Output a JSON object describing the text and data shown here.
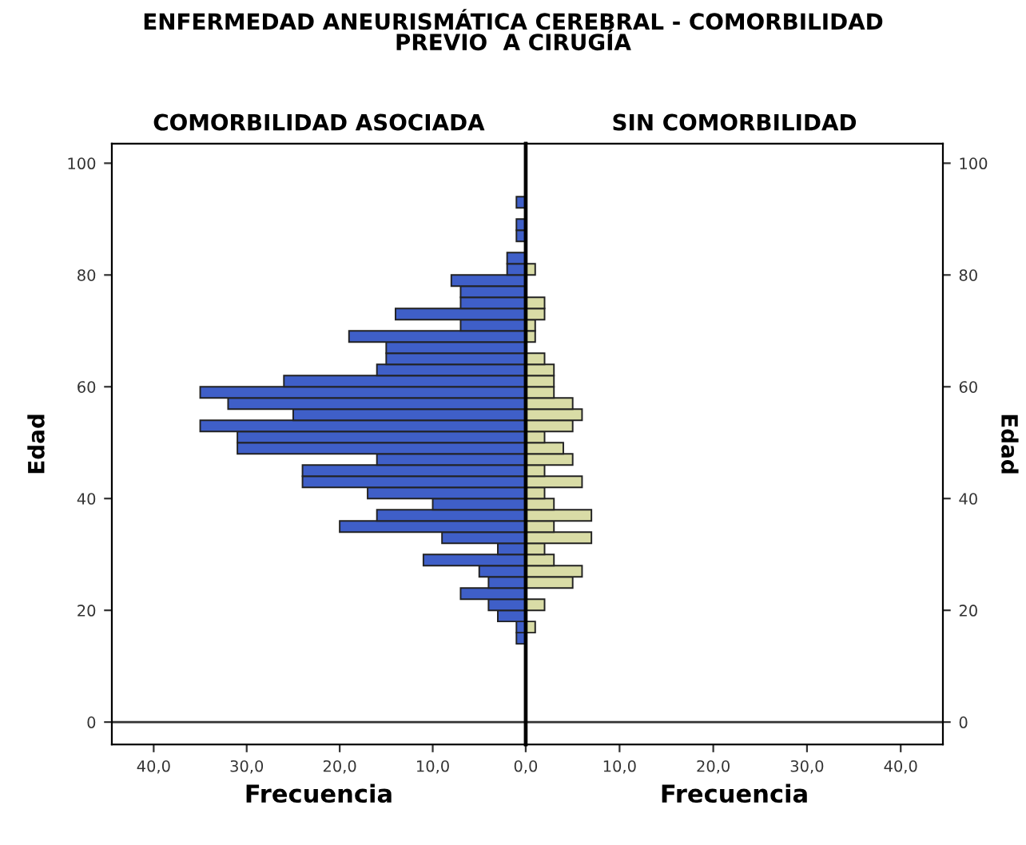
{
  "chart_data": [
    {
      "type": "histogram",
      "title": "ENFERMEDAD ANEURISMÁTICA CEREBRAL - COMORBILIDAD\nPREVIO  A CIRUGÍA",
      "subtitle": "COMORBILIDAD ASOCIADA",
      "xlabel": "Frecuencia",
      "ylabel": "Edad",
      "orientation": "horizontal",
      "bins": [
        14,
        16,
        18,
        20,
        22,
        24,
        26,
        28,
        30,
        32,
        34,
        36,
        38,
        40,
        42,
        44,
        46,
        48,
        50,
        52,
        54,
        56,
        58,
        60,
        62,
        64,
        66,
        68,
        70,
        72,
        74,
        76,
        78,
        80,
        82,
        84,
        86,
        88,
        90,
        92,
        94
      ],
      "values": [
        1,
        1,
        3,
        4,
        7,
        4,
        5,
        11,
        3,
        9,
        20,
        16,
        10,
        17,
        24,
        24,
        16,
        31,
        31,
        35,
        25,
        32,
        35,
        26,
        16,
        15,
        15,
        19,
        7,
        14,
        7,
        7,
        8,
        2,
        2,
        0,
        1,
        1,
        0,
        1
      ],
      "color": "#3f5fc8",
      "xlim": [
        44.5,
        0
      ],
      "ylim": [
        -4,
        103.5
      ],
      "xticks": [
        {
          "value": 40,
          "label": "40,0"
        },
        {
          "value": 30,
          "label": "30,0"
        },
        {
          "value": 20,
          "label": "20,0"
        },
        {
          "value": 10,
          "label": "10,0"
        },
        {
          "value": 0,
          "label": "0,0"
        }
      ],
      "yticks": [
        0,
        20,
        40,
        60,
        80,
        100
      ],
      "ref_lines": [
        {
          "axis": "y",
          "value": 0
        }
      ]
    },
    {
      "type": "histogram",
      "subtitle": "SIN COMORBILIDAD",
      "xlabel": "Frecuencia",
      "ylabel": "Edad",
      "orientation": "horizontal",
      "bins": [
        14,
        16,
        18,
        20,
        22,
        24,
        26,
        28,
        30,
        32,
        34,
        36,
        38,
        40,
        42,
        44,
        46,
        48,
        50,
        52,
        54,
        56,
        58,
        60,
        62,
        64,
        66,
        68,
        70,
        72,
        74,
        76,
        78,
        80,
        82,
        84,
        86,
        88,
        90,
        92,
        94
      ],
      "values": [
        0,
        1,
        0,
        2,
        0,
        5,
        6,
        3,
        2,
        7,
        3,
        7,
        3,
        2,
        6,
        2,
        5,
        4,
        2,
        5,
        6,
        5,
        3,
        3,
        3,
        2,
        0,
        1,
        1,
        2,
        2,
        0,
        0,
        1,
        0,
        0,
        0,
        0,
        0,
        0
      ],
      "color": "#d9dca6",
      "xlim": [
        0,
        44.5
      ],
      "ylim": [
        -4,
        103.5
      ],
      "xticks": [
        {
          "value": 10,
          "label": "10,0"
        },
        {
          "value": 20,
          "label": "20,0"
        },
        {
          "value": 30,
          "label": "30,0"
        },
        {
          "value": 40,
          "label": "40,0"
        }
      ],
      "yticks": [
        0,
        20,
        40,
        60,
        80,
        100
      ],
      "ref_lines": [
        {
          "axis": "y",
          "value": 0
        }
      ]
    }
  ]
}
